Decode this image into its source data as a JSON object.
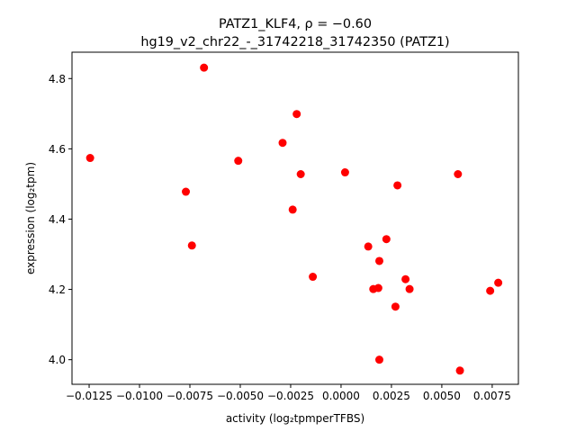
{
  "chart_data": {
    "type": "scatter",
    "title_line1": "PATZ1_KLF4, ρ = −0.60",
    "title_line2": "hg19_v2_chr22_-_31742218_31742350 (PATZ1)",
    "xlabel": "activity (log₂tpmperTFBS)",
    "ylabel": "expression (log₂tpm)",
    "xlim": [
      -0.01335,
      0.0088
    ],
    "ylim": [
      3.93,
      4.875
    ],
    "x_ticks": [
      -0.0125,
      -0.01,
      -0.0075,
      -0.005,
      -0.0025,
      0.0,
      0.0025,
      0.005,
      0.0075
    ],
    "x_tick_labels": [
      "−0.0125",
      "−0.0100",
      "−0.0075",
      "−0.0050",
      "−0.0025",
      "0.0000",
      "0.0025",
      "0.0050",
      "0.0075"
    ],
    "y_ticks": [
      4.0,
      4.2,
      4.4,
      4.6,
      4.8
    ],
    "y_tick_labels": [
      "4.0",
      "4.2",
      "4.4",
      "4.6",
      "4.8"
    ],
    "marker_color": "#ff0000",
    "grid": false,
    "points": [
      {
        "x": -0.01245,
        "y": 4.574
      },
      {
        "x": -0.0068,
        "y": 4.831
      },
      {
        "x": -0.0077,
        "y": 4.478
      },
      {
        "x": -0.0074,
        "y": 4.325
      },
      {
        "x": -0.0051,
        "y": 4.566
      },
      {
        "x": -0.0029,
        "y": 4.617
      },
      {
        "x": -0.0022,
        "y": 4.699
      },
      {
        "x": -0.002,
        "y": 4.528
      },
      {
        "x": -0.0024,
        "y": 4.427
      },
      {
        "x": -0.0014,
        "y": 4.236
      },
      {
        "x": 0.0002,
        "y": 4.533
      },
      {
        "x": 0.00135,
        "y": 4.322
      },
      {
        "x": 0.0016,
        "y": 4.201
      },
      {
        "x": 0.00185,
        "y": 4.204
      },
      {
        "x": 0.0019,
        "y": 4.281
      },
      {
        "x": 0.00225,
        "y": 4.343
      },
      {
        "x": 0.0019,
        "y": 4.0
      },
      {
        "x": 0.0028,
        "y": 4.496
      },
      {
        "x": 0.0027,
        "y": 4.151
      },
      {
        "x": 0.0032,
        "y": 4.229
      },
      {
        "x": 0.0034,
        "y": 4.201
      },
      {
        "x": 0.0058,
        "y": 4.528
      },
      {
        "x": 0.0059,
        "y": 3.969
      },
      {
        "x": 0.0074,
        "y": 4.196
      },
      {
        "x": 0.0078,
        "y": 4.219
      }
    ]
  }
}
